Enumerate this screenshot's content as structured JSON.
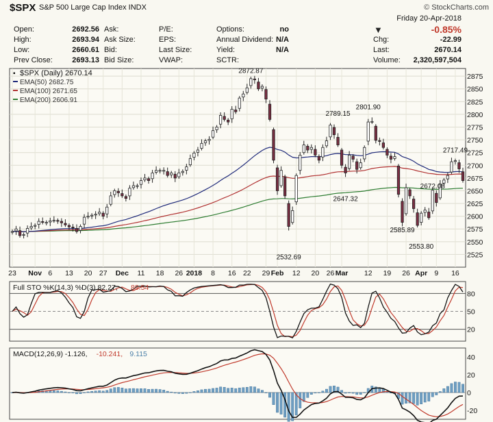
{
  "header": {
    "symbol": "$SPX",
    "description": "S&P 500 Large Cap Index INDX",
    "watermark": "© StockCharts.com",
    "date": "Friday  20-Apr-2018",
    "pct_change": "-0.85%",
    "change_color": "#c0392b",
    "arrow": "▼",
    "quote_left": [
      {
        "label": "Open:",
        "value": "2692.56"
      },
      {
        "label": "High:",
        "value": "2693.94"
      },
      {
        "label": "Low:",
        "value": "2660.61"
      },
      {
        "label": "Prev Close:",
        "value": "2693.13"
      }
    ],
    "quote_mid": [
      "Ask:",
      "Ask Size:",
      "Bid:",
      "Bid Size:"
    ],
    "quote_mid2": [
      "P/E:",
      "EPS:",
      "Last Size:",
      "VWAP:"
    ],
    "quote_mid3": [
      {
        "label": "Options:",
        "value": "no"
      },
      {
        "label": "Annual Dividend:",
        "value": "N/A"
      },
      {
        "label": "Yield:",
        "value": "N/A"
      },
      {
        "label": "SCTR:",
        "value": ""
      }
    ],
    "quote_right": [
      {
        "label": "Chg:",
        "value": "-22.99"
      },
      {
        "label": "Last:",
        "value": "2670.14"
      },
      {
        "label": "Volume:",
        "value": "2,320,597,504"
      }
    ]
  },
  "chart_data": [
    {
      "type": "line",
      "title": "$SPX (Daily) 2670.14",
      "legend": [
        {
          "name": "$SPX (Daily) 2670.14",
          "color": "#000000"
        },
        {
          "name": "EMA(50) 2682.75",
          "color": "#1f2a7a"
        },
        {
          "name": "EMA(100) 2671.65",
          "color": "#b03030"
        },
        {
          "name": "EMA(200) 2606.91",
          "color": "#2e7d32"
        }
      ],
      "ylim": [
        2500,
        2890
      ],
      "y_ticks": [
        "2525",
        "2550",
        "2575",
        "2600",
        "2625",
        "2650",
        "2675",
        "2700",
        "2725",
        "2750",
        "2775",
        "2800",
        "2825",
        "2850",
        "2875"
      ],
      "x_ticks": [
        {
          "d": 0,
          "label": "23"
        },
        {
          "d": 6,
          "label": "Nov"
        },
        {
          "d": 10,
          "label": "6"
        },
        {
          "d": 15,
          "label": "13"
        },
        {
          "d": 20,
          "label": "20"
        },
        {
          "d": 24,
          "label": "27"
        },
        {
          "d": 29,
          "label": "Dec"
        },
        {
          "d": 34,
          "label": "11"
        },
        {
          "d": 39,
          "label": "18"
        },
        {
          "d": 44,
          "label": "26"
        },
        {
          "d": 48,
          "label": "2018"
        },
        {
          "d": 53,
          "label": "8"
        },
        {
          "d": 58,
          "label": "16"
        },
        {
          "d": 62,
          "label": "22"
        },
        {
          "d": 67,
          "label": "29"
        },
        {
          "d": 70,
          "label": "Feb"
        },
        {
          "d": 75,
          "label": "12"
        },
        {
          "d": 80,
          "label": "20"
        },
        {
          "d": 84,
          "label": "26"
        },
        {
          "d": 87,
          "label": "Mar"
        },
        {
          "d": 94,
          "label": "12"
        },
        {
          "d": 99,
          "label": "19"
        },
        {
          "d": 104,
          "label": "26"
        },
        {
          "d": 108,
          "label": "Apr"
        },
        {
          "d": 112,
          "label": "9"
        },
        {
          "d": 117,
          "label": "16"
        }
      ],
      "close": [
        2570,
        2575,
        2562,
        2564,
        2576,
        2580,
        2582,
        2590,
        2588,
        2588,
        2591,
        2592,
        2591,
        2587,
        2583,
        2579,
        2578,
        2570,
        2580,
        2598,
        2600,
        2602,
        2604,
        2608,
        2600,
        2618,
        2640,
        2650,
        2646,
        2640,
        2635,
        2655,
        2660,
        2660,
        2670,
        2675,
        2670,
        2685,
        2690,
        2690,
        2690,
        2680,
        2685,
        2675,
        2685,
        2688,
        2697,
        2713,
        2724,
        2730,
        2743,
        2748,
        2751,
        2768,
        2775,
        2798,
        2790,
        2785,
        2810,
        2805,
        2832,
        2840,
        2852,
        2870,
        2868,
        2850,
        2855,
        2830,
        2790,
        2710,
        2650,
        2690,
        2640,
        2580,
        2611,
        2680,
        2720,
        2740,
        2730,
        2735,
        2720,
        2710,
        2735,
        2748,
        2779,
        2760,
        2740,
        2700,
        2685,
        2720,
        2712,
        2692,
        2705,
        2735,
        2785,
        2786,
        2749,
        2747,
        2735,
        2720,
        2712,
        2717,
        2643,
        2588,
        2656,
        2640,
        2615,
        2582,
        2606,
        2612,
        2597,
        2651,
        2627,
        2663,
        2671,
        2680,
        2707,
        2709,
        2693,
        2670
      ],
      "annotations": [
        {
          "d": 63,
          "price": 2872.87,
          "label": "2872.87"
        },
        {
          "d": 86,
          "price": 2789.15,
          "label": "2789.15"
        },
        {
          "d": 94,
          "price": 2801.9,
          "label": "2801.90"
        },
        {
          "d": 117,
          "price": 2717.49,
          "label": "2717.49"
        },
        {
          "d": 111,
          "price": 2672.08,
          "label": "2672.08"
        },
        {
          "d": 88,
          "price": 2647.32,
          "label": "2647.32"
        },
        {
          "d": 103,
          "price": 2585.89,
          "label": "2585.89"
        },
        {
          "d": 108,
          "price": 2553.8,
          "label": "2553.80"
        },
        {
          "d": 73,
          "price": 2532.69,
          "label": "2532.69"
        }
      ]
    },
    {
      "type": "line",
      "title": "Full STO %K(14,3) %D(3) 82.27, 89.54",
      "legend": [
        {
          "name": "Full STO %K(14,3) %D(3) 82.27,",
          "color": "#000000"
        },
        {
          "name": "89.54",
          "color": "#c0392b"
        }
      ],
      "ylim": [
        0,
        100
      ],
      "y_ticks": [
        "20",
        "50",
        "80"
      ]
    },
    {
      "type": "line",
      "title": "MACD(12,26,9) -1.126, -10.241, 9.115",
      "legend": [
        {
          "name": "MACD(12,26,9) -1.126,",
          "color": "#000000"
        },
        {
          "name": "-10.241,",
          "color": "#c0392b"
        },
        {
          "name": "9.115",
          "color": "#4a7fa8"
        }
      ],
      "ylim": [
        -30,
        50
      ],
      "y_ticks": [
        "-20",
        "0",
        "20",
        "40"
      ]
    }
  ]
}
